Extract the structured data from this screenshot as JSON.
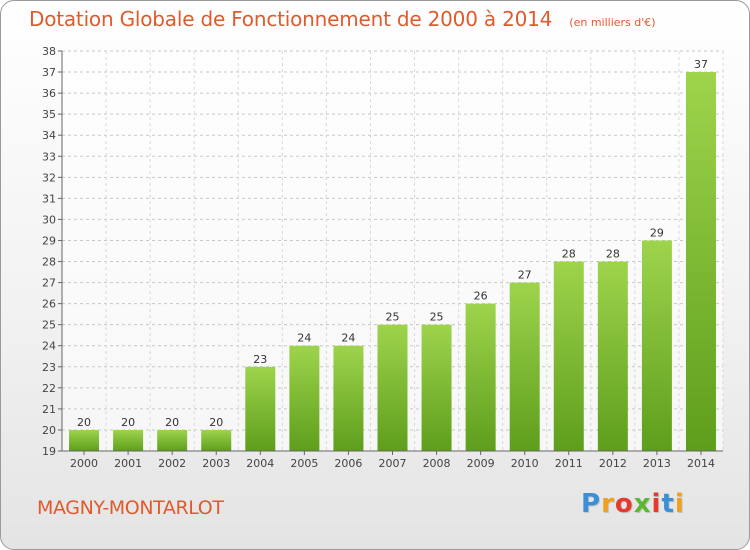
{
  "title": "Dotation Globale de Fonctionnement de 2000 à 2014",
  "unit": "(en milliers d'€)",
  "town": "MAGNY-MONTARLOT",
  "logo": {
    "letters": [
      "P",
      "r",
      "o",
      "x",
      "i",
      "t",
      "i"
    ],
    "colors": [
      "#3a8fd6",
      "#f0a020",
      "#e33b2e",
      "#5cb830",
      "#e33b2e",
      "#3a8fd6",
      "#f0a020"
    ]
  },
  "chart_data": {
    "type": "bar",
    "title": "Dotation Globale de Fonctionnement de 2000 à 2014",
    "categories": [
      "2000",
      "2001",
      "2002",
      "2003",
      "2004",
      "2005",
      "2006",
      "2007",
      "2008",
      "2009",
      "2010",
      "2011",
      "2012",
      "2013",
      "2014"
    ],
    "values": [
      20,
      20,
      20,
      20,
      23,
      24,
      24,
      25,
      25,
      26,
      27,
      28,
      28,
      29,
      37
    ],
    "ylim": [
      19,
      38
    ],
    "yticks": [
      19,
      20,
      21,
      22,
      23,
      24,
      25,
      26,
      27,
      28,
      29,
      30,
      31,
      32,
      33,
      34,
      35,
      36,
      37,
      38
    ],
    "grid": true,
    "bar_color": "#7cc030",
    "xlabel": "",
    "ylabel": ""
  }
}
